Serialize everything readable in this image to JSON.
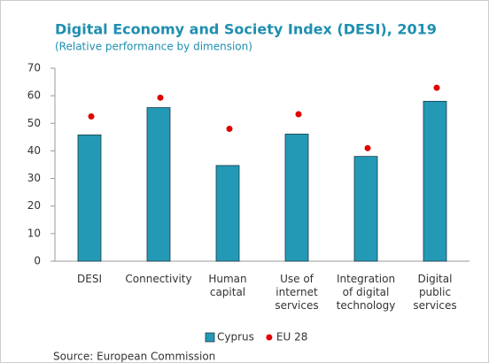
{
  "chart_data": {
    "type": "bar",
    "title": "Digital Economy and Society Index (DESI), 2019",
    "subtitle": "(Relative performance by dimension)",
    "source": "Source: European Commission",
    "categories": [
      "DESI",
      "Connectivity",
      "Human capital",
      "Use of internet services",
      "Integration of digital technology",
      "Digital public services"
    ],
    "series": [
      {
        "name": "Cyprus",
        "type": "bar",
        "color": "#2399b6",
        "values": [
          45.8,
          55.7,
          34.7,
          46.1,
          38.0,
          58.0
        ]
      },
      {
        "name": "EU 28",
        "type": "scatter",
        "color": "#e00000",
        "values": [
          52.5,
          59.3,
          48.0,
          53.3,
          41.0,
          62.9
        ]
      }
    ],
    "ylim": [
      0,
      70
    ],
    "yticks": [
      0,
      10,
      20,
      30,
      40,
      50,
      60,
      70
    ],
    "legend": "bottom"
  }
}
